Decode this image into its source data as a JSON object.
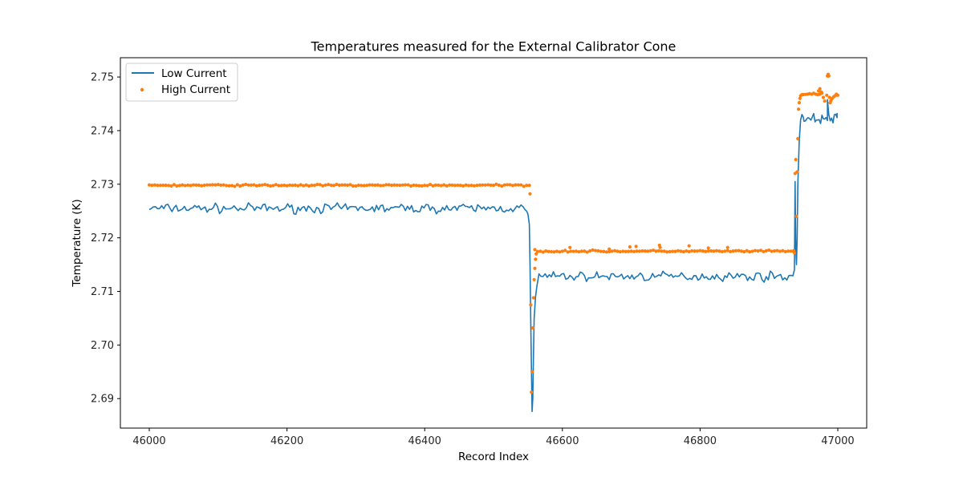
{
  "chart_data": {
    "type": "line",
    "title": "Temperatures measured for the External Calibrator Cone",
    "xlabel": "Record Index",
    "ylabel": "Temperature (K)",
    "xlim": [
      45958,
      47042
    ],
    "ylim": [
      2.6845,
      2.7536
    ],
    "xticks": [
      46000,
      46200,
      46400,
      46600,
      46800,
      47000
    ],
    "yticks": [
      2.69,
      2.7,
      2.71,
      2.72,
      2.73,
      2.74,
      2.75
    ],
    "ytick_labels": [
      "2.69",
      "2.70",
      "2.71",
      "2.72",
      "2.73",
      "2.74",
      "2.75"
    ],
    "grid": false,
    "legend": "top-left",
    "series": [
      {
        "name": "Low Current",
        "kind": "line",
        "color": "#1f77b4",
        "segments": [
          {
            "x_start": 46000,
            "x_end": 46548,
            "step": 3,
            "level": 2.7255,
            "noise": 0.0006
          },
          {
            "x_start": 46566,
            "x_end": 46935,
            "step": 3,
            "level": 2.7128,
            "noise": 0.0006
          },
          {
            "x_start": 46951,
            "x_end": 46999,
            "step": 2,
            "level": 2.7422,
            "noise": 0.0006
          }
        ],
        "points": [
          [
            46548,
            2.725
          ],
          [
            46550,
            2.7244
          ],
          [
            46552,
            2.7225
          ],
          [
            46553,
            2.715
          ],
          [
            46554,
            2.705
          ],
          [
            46555,
            2.696
          ],
          [
            46556,
            2.6876
          ],
          [
            46557,
            2.69
          ],
          [
            46558,
            2.698
          ],
          [
            46559,
            2.705
          ],
          [
            46561,
            2.709
          ],
          [
            46563,
            2.711
          ],
          [
            46935,
            2.713
          ],
          [
            46937,
            2.714
          ],
          [
            46938,
            2.7305
          ],
          [
            46939,
            2.718
          ],
          [
            46940,
            2.715
          ],
          [
            46941,
            2.72
          ],
          [
            46942,
            2.73
          ],
          [
            46944,
            2.738
          ],
          [
            46946,
            2.742
          ],
          [
            46948,
            2.743
          ],
          [
            46950,
            2.7425
          ],
          [
            46985,
            2.7458
          ],
          [
            46987,
            2.743
          ],
          [
            46999,
            2.7433
          ]
        ]
      },
      {
        "name": "High Current",
        "kind": "scatter",
        "color": "#ff7f0e",
        "segments": [
          {
            "x_start": 46000,
            "x_end": 46553,
            "step": 4,
            "level": 2.7298,
            "noise": 0.00012
          },
          {
            "x_start": 46564,
            "x_end": 46938,
            "step": 4,
            "level": 2.7175,
            "noise": 0.00012
          },
          {
            "x_start": 46950,
            "x_end": 46978,
            "step": 3,
            "level": 2.7468,
            "noise": 0.00012
          }
        ],
        "points": [
          [
            46553,
            2.7282
          ],
          [
            46554,
            2.7075
          ],
          [
            46555,
            2.6912
          ],
          [
            46556,
            2.695
          ],
          [
            46557,
            2.7032
          ],
          [
            46558,
            2.7088
          ],
          [
            46559,
            2.7122
          ],
          [
            46560,
            2.7143
          ],
          [
            46561,
            2.716
          ],
          [
            46562,
            2.717
          ],
          [
            46560,
            2.7178
          ],
          [
            46611,
            2.7182
          ],
          [
            46668,
            2.7179
          ],
          [
            46698,
            2.7183
          ],
          [
            46707,
            2.7184
          ],
          [
            46741,
            2.7186
          ],
          [
            46742,
            2.7182
          ],
          [
            46784,
            2.7185
          ],
          [
            46812,
            2.7181
          ],
          [
            46840,
            2.7182
          ],
          [
            46936,
            2.7176
          ],
          [
            46937,
            2.7172
          ],
          [
            46938,
            2.732
          ],
          [
            46939,
            2.7346
          ],
          [
            46940,
            2.724
          ],
          [
            46941,
            2.7323
          ],
          [
            46942,
            2.7385
          ],
          [
            46943,
            2.744
          ],
          [
            46944,
            2.7452
          ],
          [
            46945,
            2.746
          ],
          [
            46946,
            2.7465
          ],
          [
            46948,
            2.7467
          ],
          [
            46972,
            2.7474
          ],
          [
            46974,
            2.7478
          ],
          [
            46976,
            2.7472
          ],
          [
            46979,
            2.7462
          ],
          [
            46981,
            2.7455
          ],
          [
            46984,
            2.7466
          ],
          [
            46985,
            2.7502
          ],
          [
            46986,
            2.7505
          ],
          [
            46987,
            2.7502
          ],
          [
            46988,
            2.7462
          ],
          [
            46989,
            2.7452
          ],
          [
            46990,
            2.7456
          ],
          [
            46992,
            2.746
          ],
          [
            46994,
            2.7463
          ],
          [
            46996,
            2.7465
          ],
          [
            46998,
            2.7468
          ],
          [
            47000,
            2.7466
          ]
        ]
      }
    ]
  }
}
